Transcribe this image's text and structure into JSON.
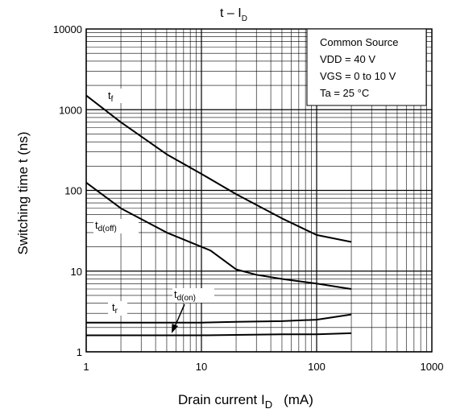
{
  "chart_data": {
    "type": "line",
    "title": "t – I",
    "title_sub": "D",
    "xlabel": "Drain current   I",
    "xlabel_sub": "D",
    "xlabel_unit": "(mA)",
    "ylabel": "Switching time   t    (ns)",
    "x_scale": "log",
    "y_scale": "log",
    "xlim": [
      1,
      1000
    ],
    "ylim": [
      1,
      10000
    ],
    "grid": true,
    "x_ticks": [
      "1",
      "10",
      "100",
      "1000"
    ],
    "y_ticks": [
      "1",
      "10",
      "100",
      "1000",
      "10000"
    ],
    "conditions": [
      "Common Source",
      "VDD = 40 V",
      "VGS = 0 to 10 V",
      "Ta = 25 °C"
    ],
    "series": [
      {
        "name": "tf",
        "label_main": "t",
        "label_sub": "f",
        "x": [
          1,
          2,
          5,
          10,
          20,
          50,
          100,
          200
        ],
        "y": [
          1500,
          700,
          280,
          160,
          90,
          45,
          28,
          23
        ]
      },
      {
        "name": "td(off)",
        "label_main": "t",
        "label_sub": "d(off)",
        "x": [
          1,
          2,
          5,
          10,
          12,
          20,
          30,
          50,
          100,
          200
        ],
        "y": [
          125,
          60,
          30,
          20,
          18,
          10.5,
          9,
          8,
          7,
          6
        ]
      },
      {
        "name": "tr",
        "label_main": "t",
        "label_sub": "r",
        "x": [
          1,
          10,
          20,
          50,
          100,
          200
        ],
        "y": [
          2.3,
          2.3,
          2.35,
          2.4,
          2.5,
          2.9
        ]
      },
      {
        "name": "td(on)",
        "label_main": "t",
        "label_sub": "d(on)",
        "x": [
          1,
          10,
          50,
          100,
          200
        ],
        "y": [
          1.6,
          1.6,
          1.65,
          1.65,
          1.7
        ]
      }
    ]
  }
}
